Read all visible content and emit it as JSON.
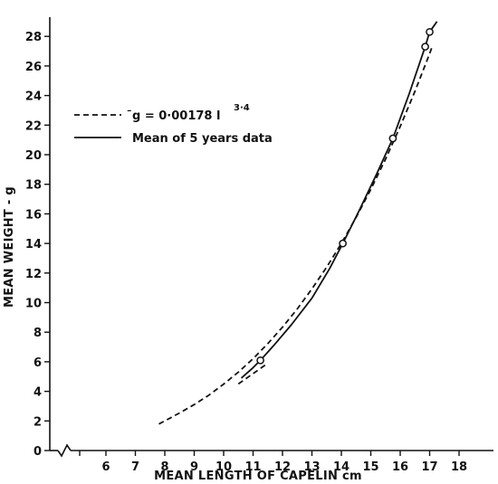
{
  "chart_data": {
    "type": "line",
    "title": "",
    "xlabel": "MEAN LENGTH OF CAPELIN cm",
    "ylabel": "MEAN WEIGHT - g",
    "xlim": [
      6,
      18
    ],
    "ylim": [
      0,
      28
    ],
    "x_ticks": [
      "6",
      "7",
      "8",
      "9",
      "10",
      "11",
      "12",
      "13",
      "14",
      "15",
      "16",
      "17",
      "18"
    ],
    "y_ticks": [
      "0",
      "2",
      "4",
      "6",
      "8",
      "10",
      "12",
      "14",
      "16",
      "18",
      "20",
      "22",
      "24",
      "26",
      "28"
    ],
    "x_axis_break": true,
    "grid": false,
    "legend_position": "upper-left",
    "series": [
      {
        "name": "̄g = 0·00178 l",
        "name_superscript": "3·4",
        "style": "dashed",
        "color": "#111111",
        "x": [
          7.8,
          8.5,
          9.0,
          9.5,
          10.0,
          10.5,
          11.0,
          11.5,
          12.0,
          12.5,
          13.0,
          13.5,
          14.0,
          14.5,
          15.0,
          15.5,
          16.0,
          16.5,
          17.0,
          17.1
        ],
        "y": [
          1.79,
          2.54,
          3.11,
          3.75,
          4.49,
          5.3,
          6.21,
          7.23,
          8.34,
          9.57,
          10.93,
          12.4,
          14.0,
          15.76,
          17.65,
          19.7,
          21.91,
          24.29,
          26.83,
          27.4
        ]
      },
      {
        "name": "Mean of 5 years data",
        "style": "solid",
        "color": "#111111",
        "x": [
          10.6,
          11.0,
          11.25,
          11.7,
          12.3,
          13.0,
          13.6,
          14.05,
          14.6,
          15.2,
          15.75,
          16.3,
          16.85,
          17.0,
          17.25
        ],
        "y": [
          4.9,
          5.6,
          6.1,
          7.1,
          8.5,
          10.3,
          12.3,
          14.0,
          16.2,
          18.7,
          21.1,
          24.1,
          27.3,
          28.3,
          29.0
        ]
      },
      {
        "name": "",
        "style": "dashed",
        "color": "#111111",
        "x": [
          10.5,
          11.0,
          11.5
        ],
        "y": [
          4.5,
          5.2,
          5.9
        ]
      }
    ],
    "observed_points": {
      "x": [
        11.25,
        14.05,
        15.75,
        16.85,
        17.0
      ],
      "y": [
        6.1,
        14.0,
        21.1,
        27.3,
        28.3
      ]
    }
  }
}
